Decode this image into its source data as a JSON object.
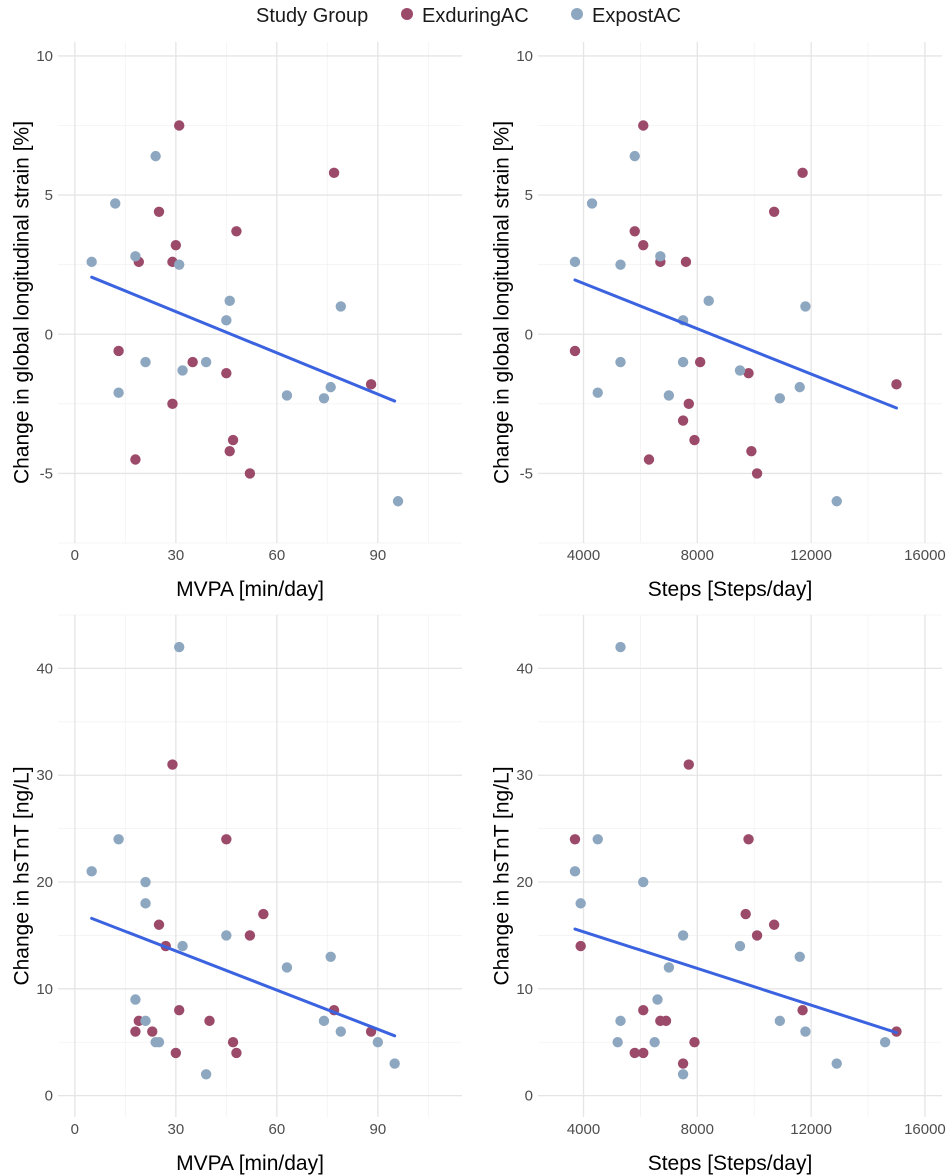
{
  "legend": {
    "title": "Study Group",
    "entries": [
      {
        "label": "ExduringAC",
        "color": "#9c4a6a"
      },
      {
        "label": "ExpostAC",
        "color": "#8ea7c0"
      }
    ]
  },
  "colors": {
    "trend_line": "#3b63e0",
    "grid": "#e5e5e5"
  },
  "chart_data": [
    {
      "type": "scatter",
      "xlabel": "MVPA [min/day]",
      "ylabel": "Change in global longitudinal strain [%]",
      "xlim": [
        -5,
        115
      ],
      "ylim": [
        -7.5,
        10.5
      ],
      "xticks": [
        0,
        30,
        60,
        90
      ],
      "xtick_labels": [
        "0",
        "30",
        "60",
        "90"
      ],
      "yticks": [
        -5,
        0,
        5,
        10
      ],
      "ytick_labels": [
        "-5",
        "0",
        "5",
        "10"
      ],
      "trend": {
        "x": [
          5,
          95
        ],
        "y": [
          2.05,
          -2.4
        ]
      },
      "series": [
        {
          "name": "ExduringAC",
          "x": [
            31,
            77,
            25,
            30,
            48,
            19,
            29,
            13,
            35,
            45,
            29,
            88,
            47,
            46,
            18,
            52
          ],
          "y": [
            7.5,
            5.8,
            4.4,
            3.2,
            3.7,
            2.6,
            2.6,
            -0.6,
            -1.0,
            -1.4,
            -2.5,
            -1.8,
            -3.8,
            -4.2,
            -4.5,
            -5.0
          ]
        },
        {
          "name": "ExpostAC",
          "x": [
            24,
            12,
            5,
            18,
            31,
            46,
            79,
            45,
            21,
            39,
            13,
            32,
            63,
            74,
            76,
            96
          ],
          "y": [
            6.4,
            4.7,
            2.6,
            2.8,
            2.5,
            1.2,
            1.0,
            0.5,
            -1.0,
            -1.0,
            -2.1,
            -1.3,
            -2.2,
            -2.3,
            -1.9,
            -6.0
          ]
        }
      ]
    },
    {
      "type": "scatter",
      "xlabel": "Steps [Steps/day]",
      "ylabel": "Change in global longitudinal strain [%]",
      "xlim": [
        2400,
        16600
      ],
      "ylim": [
        -7.5,
        10.5
      ],
      "xticks": [
        4000,
        8000,
        12000,
        16000
      ],
      "xtick_labels": [
        "4000",
        "8000",
        "12000",
        "16000"
      ],
      "yticks": [
        -5,
        0,
        5,
        10
      ],
      "ytick_labels": [
        "-5",
        "0",
        "5",
        "10"
      ],
      "trend": {
        "x": [
          3700,
          15000
        ],
        "y": [
          1.95,
          -2.65
        ]
      },
      "series": [
        {
          "name": "ExduringAC",
          "x": [
            6100,
            11700,
            10700,
            5800,
            6100,
            6700,
            7600,
            3700,
            8100,
            9800,
            7700,
            15000,
            7900,
            9900,
            6300,
            10100,
            7500
          ],
          "y": [
            7.5,
            5.8,
            4.4,
            3.7,
            3.2,
            2.6,
            2.6,
            -0.6,
            -1.0,
            -1.4,
            -2.5,
            -1.8,
            -3.8,
            -4.2,
            -4.5,
            -5.0,
            -3.1
          ]
        },
        {
          "name": "ExpostAC",
          "x": [
            5800,
            4300,
            3700,
            6700,
            5300,
            8400,
            11800,
            7500,
            5300,
            7500,
            4500,
            9500,
            7000,
            10900,
            11600,
            12900
          ],
          "y": [
            6.4,
            4.7,
            2.6,
            2.8,
            2.5,
            1.2,
            1.0,
            0.5,
            -1.0,
            -1.0,
            -2.1,
            -1.3,
            -2.2,
            -2.3,
            -1.9,
            -6.0
          ]
        }
      ]
    },
    {
      "type": "scatter",
      "xlabel": "MVPA [min/day]",
      "ylabel": "Change in hsTnT [ng/L]",
      "xlim": [
        -5,
        115
      ],
      "ylim": [
        -2,
        45
      ],
      "xticks": [
        0,
        30,
        60,
        90
      ],
      "xtick_labels": [
        "0",
        "30",
        "60",
        "90"
      ],
      "yticks": [
        0,
        10,
        20,
        30,
        40
      ],
      "ytick_labels": [
        "0",
        "10",
        "20",
        "30",
        "40"
      ],
      "trend": {
        "x": [
          5,
          95
        ],
        "y": [
          16.6,
          5.6
        ]
      },
      "series": [
        {
          "name": "ExduringAC",
          "x": [
            29,
            45,
            56,
            25,
            52,
            27,
            31,
            40,
            19,
            18,
            23,
            47,
            48,
            30,
            77,
            88
          ],
          "y": [
            31,
            24,
            17,
            16,
            15,
            14,
            8,
            7,
            7,
            6,
            6,
            5,
            4,
            4,
            8,
            6
          ]
        },
        {
          "name": "ExpostAC",
          "x": [
            31,
            13,
            5,
            21,
            21,
            45,
            32,
            63,
            76,
            18,
            21,
            24,
            25,
            39,
            74,
            79,
            90,
            95
          ],
          "y": [
            42,
            24,
            21,
            20,
            18,
            15,
            14,
            12,
            13,
            9,
            7,
            5,
            5,
            2,
            7,
            6,
            5,
            3
          ]
        }
      ]
    },
    {
      "type": "scatter",
      "xlabel": "Steps [Steps/day]",
      "ylabel": "Change in hsTnT [ng/L]",
      "xlim": [
        2400,
        16600
      ],
      "ylim": [
        -2,
        45
      ],
      "xticks": [
        4000,
        8000,
        12000,
        16000
      ],
      "xtick_labels": [
        "4000",
        "8000",
        "12000",
        "16000"
      ],
      "yticks": [
        0,
        10,
        20,
        30,
        40
      ],
      "ytick_labels": [
        "0",
        "10",
        "20",
        "30",
        "40"
      ],
      "trend": {
        "x": [
          3700,
          15000
        ],
        "y": [
          15.6,
          5.9
        ]
      },
      "series": [
        {
          "name": "ExduringAC",
          "x": [
            7700,
            3700,
            9800,
            9700,
            10700,
            10100,
            3900,
            6100,
            6700,
            6900,
            7900,
            5800,
            6100,
            7500,
            11700,
            15000
          ],
          "y": [
            31,
            24,
            24,
            17,
            16,
            15,
            14,
            8,
            7,
            7,
            5,
            4,
            4,
            3,
            8,
            6
          ]
        },
        {
          "name": "ExpostAC",
          "x": [
            5300,
            4500,
            3700,
            3900,
            6100,
            7500,
            9500,
            11600,
            7000,
            6600,
            5300,
            10900,
            5200,
            6500,
            11800,
            12900,
            14600,
            7500
          ],
          "y": [
            42,
            24,
            21,
            18,
            20,
            15,
            14,
            13,
            12,
            9,
            7,
            7,
            5,
            5,
            6,
            3,
            5,
            2
          ]
        }
      ]
    }
  ]
}
